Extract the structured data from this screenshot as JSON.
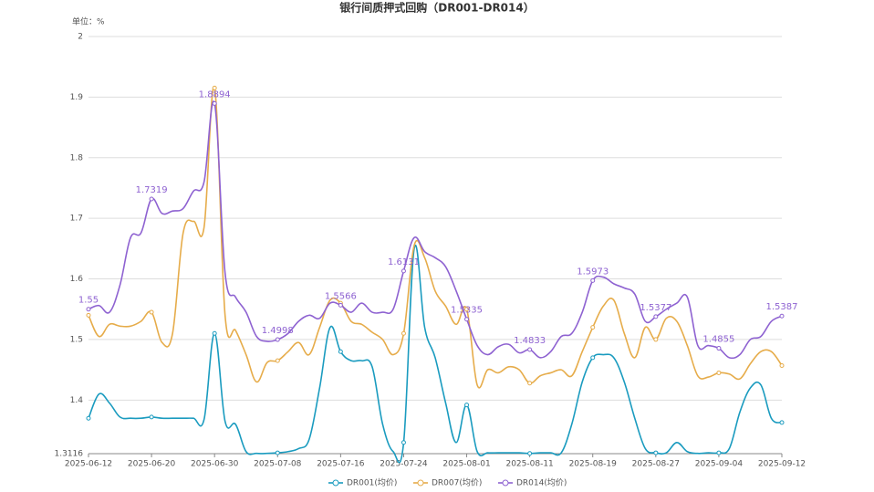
{
  "chart_data": {
    "type": "line",
    "title": "银行间质押式回购（DR001-DR014）",
    "y_axis_label": "单位：%",
    "categories": [
      "2025-06-12",
      null,
      null,
      null,
      null,
      null,
      "2025-06-20",
      null,
      null,
      null,
      null,
      null,
      "2025-06-30",
      null,
      null,
      null,
      null,
      null,
      "2025-07-08",
      null,
      null,
      null,
      null,
      null,
      "2025-07-16",
      null,
      null,
      null,
      null,
      null,
      "2025-07-24",
      null,
      null,
      null,
      null,
      null,
      "2025-08-01",
      null,
      null,
      null,
      null,
      null,
      "2025-08-11",
      null,
      null,
      null,
      null,
      null,
      "2025-08-19",
      null,
      null,
      null,
      null,
      null,
      "2025-08-27",
      null,
      null,
      null,
      null,
      null,
      "2025-09-04",
      null,
      null,
      null,
      null,
      null,
      "2025-09-12"
    ],
    "ylim": [
      1.3116,
      2
    ],
    "yticks": [
      1.3116,
      1.4,
      1.5,
      1.6,
      1.7,
      1.8,
      1.9,
      2
    ],
    "grid": true,
    "legend": "bottom",
    "series": [
      {
        "name": "DR001(均价)",
        "color": "#1a9bbf",
        "values": [
          1.37,
          1.41,
          1.395,
          1.372,
          1.37,
          1.37,
          1.372,
          1.37,
          1.37,
          1.37,
          1.37,
          1.368,
          1.51,
          1.365,
          1.36,
          1.315,
          1.312,
          1.312,
          1.313,
          1.315,
          1.32,
          1.335,
          1.42,
          1.52,
          1.48,
          1.465,
          1.465,
          1.455,
          1.36,
          1.315,
          1.33,
          1.65,
          1.52,
          1.47,
          1.395,
          1.33,
          1.392,
          1.315,
          1.313,
          1.313,
          1.313,
          1.313,
          1.312,
          1.313,
          1.313,
          1.313,
          1.36,
          1.43,
          1.47,
          1.475,
          1.47,
          1.43,
          1.37,
          1.32,
          1.313,
          1.313,
          1.33,
          1.315,
          1.312,
          1.313,
          1.313,
          1.32,
          1.38,
          1.42,
          1.425,
          1.37,
          1.363
        ]
      },
      {
        "name": "DR007(均价)",
        "color": "#e6ac4a",
        "values": [
          1.54,
          1.505,
          1.525,
          1.522,
          1.522,
          1.53,
          1.545,
          1.495,
          1.51,
          1.675,
          1.695,
          1.685,
          1.915,
          1.54,
          1.515,
          1.475,
          1.43,
          1.462,
          1.465,
          1.48,
          1.495,
          1.475,
          1.52,
          1.565,
          1.56,
          1.53,
          1.525,
          1.512,
          1.5,
          1.475,
          1.51,
          1.655,
          1.635,
          1.58,
          1.555,
          1.525,
          1.55,
          1.425,
          1.45,
          1.445,
          1.455,
          1.45,
          1.428,
          1.44,
          1.445,
          1.45,
          1.44,
          1.48,
          1.52,
          1.555,
          1.565,
          1.51,
          1.47,
          1.52,
          1.5,
          1.535,
          1.53,
          1.49,
          1.44,
          1.438,
          1.445,
          1.443,
          1.435,
          1.46,
          1.48,
          1.48,
          1.457
        ]
      },
      {
        "name": "DR014(均价)",
        "color": "#8e62d1",
        "values": [
          1.55,
          1.556,
          1.545,
          1.59,
          1.668,
          1.676,
          1.7319,
          1.708,
          1.712,
          1.716,
          1.745,
          1.76,
          1.8894,
          1.61,
          1.57,
          1.545,
          1.505,
          1.497,
          1.4998,
          1.51,
          1.53,
          1.54,
          1.535,
          1.56,
          1.5566,
          1.545,
          1.56,
          1.545,
          1.545,
          1.55,
          1.6131,
          1.668,
          1.645,
          1.635,
          1.62,
          1.58,
          1.5335,
          1.49,
          1.475,
          1.488,
          1.492,
          1.478,
          1.4833,
          1.47,
          1.48,
          1.505,
          1.51,
          1.545,
          1.5973,
          1.603,
          1.592,
          1.585,
          1.575,
          1.53,
          1.5377,
          1.55,
          1.56,
          1.57,
          1.49,
          1.49,
          1.4855,
          1.47,
          1.475,
          1.5,
          1.505,
          1.53,
          1.5387
        ],
        "value_labels": [
          "1.55",
          null,
          null,
          null,
          null,
          null,
          "1.7319",
          null,
          null,
          null,
          null,
          null,
          "1.8894",
          null,
          null,
          null,
          null,
          null,
          "1.4998",
          null,
          null,
          null,
          null,
          null,
          "1.5566",
          null,
          null,
          null,
          null,
          null,
          "1.6131",
          null,
          null,
          null,
          null,
          null,
          "1.5335",
          null,
          null,
          null,
          null,
          null,
          "1.4833",
          null,
          null,
          null,
          null,
          null,
          "1.5973",
          null,
          null,
          null,
          null,
          null,
          "1.5377",
          null,
          null,
          null,
          null,
          null,
          "1.4855",
          null,
          null,
          null,
          null,
          null,
          "1.5387"
        ]
      }
    ]
  }
}
